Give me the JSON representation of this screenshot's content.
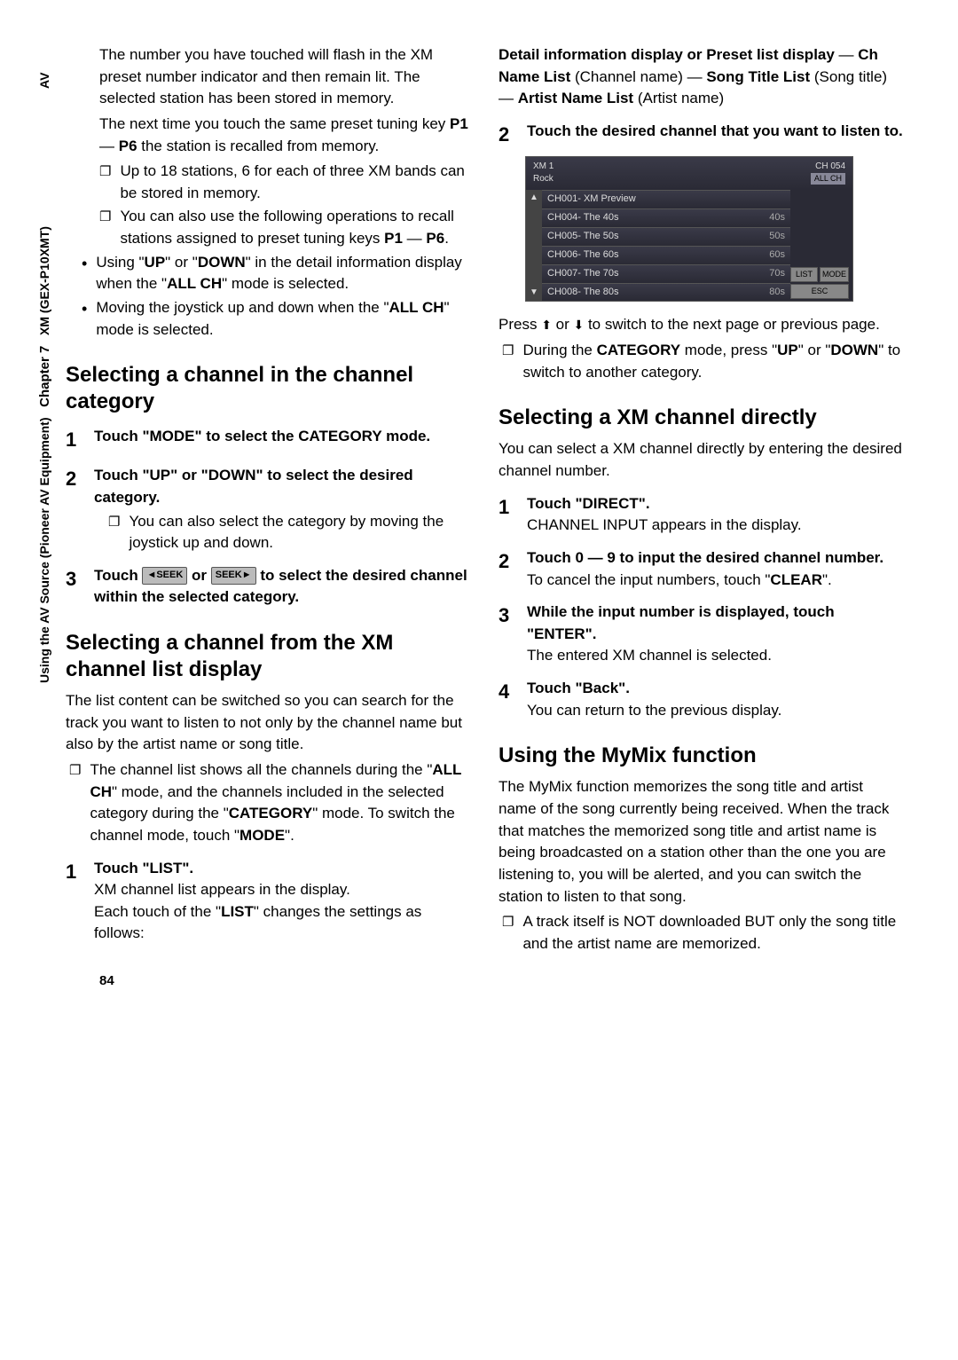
{
  "sidebar": {
    "av": "AV",
    "chapter_label": "Chapter 7",
    "product": "XM (GEX-P10XMT)",
    "using": "Using the AV Source (Pioneer AV Equipment)"
  },
  "left": {
    "p1": "The number you have touched will flash in the XM preset number indicator and then remain lit. The selected station has been stored in memory.",
    "p2a": "The next time you touch the same preset tuning key ",
    "p2b": "P1",
    "p2c": " — ",
    "p2d": "P6",
    "p2e": " the station is recalled from memory.",
    "b1": "Up to 18 stations, 6 for each of three XM bands can be stored in memory.",
    "b2a": "You can also use the following operations to recall stations assigned to preset tuning keys ",
    "b2b": "P1",
    "b2c": " — ",
    "b2d": "P6",
    "b2e": ".",
    "d1a": "Using \"",
    "d1b": "UP",
    "d1c": "\" or \"",
    "d1d": "DOWN",
    "d1e": "\" in the detail information display when the \"",
    "d1f": "ALL CH",
    "d1g": "\" mode is selected.",
    "d2a": "Moving the joystick up and down when the \"",
    "d2b": "ALL CH",
    "d2c": "\" mode is selected.",
    "h1": "Selecting a channel in the channel category",
    "s1": "Touch \"MODE\" to select the CATEGORY mode.",
    "s2": "Touch \"UP\" or \"DOWN\" to select the desired category.",
    "s2b": "You can also select the category by moving the joystick up and down.",
    "s3a": "Touch ",
    "s3b": " or ",
    "s3c": " to select the desired channel within the selected category.",
    "seek_l": "◄SEEK",
    "seek_r": "SEEK►",
    "h2": "Selecting a channel from the XM channel list display",
    "p3": "The list content can be switched so you can search for the track you want to listen to not only by the channel name but also by the artist name or song title.",
    "b3a": "The channel list shows all the channels during the \"",
    "b3b": "ALL CH",
    "b3c": "\" mode, and the channels included in the selected category during the \"",
    "b3d": "CATEGORY",
    "b3e": "\" mode. To switch the channel mode, touch \"",
    "b3f": "MODE",
    "b3g": "\".",
    "s4": "Touch \"LIST\".",
    "s4a": "XM channel list appears in the display.",
    "s4b_a": "Each touch of the \"",
    "s4b_b": "LIST",
    "s4b_c": "\" changes the settings as follows:"
  },
  "right": {
    "top_a": "Detail information display or Preset list display",
    "top_b": " — ",
    "top_c": "Ch Name List",
    "top_d": " (Channel name) — ",
    "top_e": "Song Title List",
    "top_f": " (Song title) — ",
    "top_g": "Artist Name List",
    "top_h": " (Artist name)",
    "s2": "Touch the desired channel that you want to listen to.",
    "screenshot": {
      "xm": "XM 1",
      "genre": "Rock",
      "ch": "CH 054",
      "allch": "ALL CH",
      "rows": [
        {
          "l": "CH001- XM Preview",
          "r": ""
        },
        {
          "l": "CH004- The 40s",
          "r": "40s"
        },
        {
          "l": "CH005- The 50s",
          "r": "50s"
        },
        {
          "l": "CH006- The 60s",
          "r": "60s"
        },
        {
          "l": "CH007- The 70s",
          "r": "70s"
        },
        {
          "l": "CH008- The 80s",
          "r": "80s"
        }
      ],
      "btn_list": "LIST",
      "btn_mode": "MODE",
      "btn_esc": "ESC"
    },
    "p_press_a": "Press ",
    "p_press_b": " or ",
    "p_press_c": " to switch to the next page or previous page.",
    "arrow_up": "⇞",
    "arrow_dn": "⇟",
    "b_cat_a": "During the ",
    "b_cat_b": "CATEGORY",
    "b_cat_c": " mode, press \"",
    "b_cat_d": "UP",
    "b_cat_e": "\" or \"",
    "b_cat_f": "DOWN",
    "b_cat_g": "\" to switch to another category.",
    "h3": "Selecting a XM channel directly",
    "p4": "You can select a XM channel directly by entering the desired channel number.",
    "s1": "Touch \"DIRECT\".",
    "s1t": "CHANNEL INPUT appears in the display.",
    "s2d": "Touch 0 — 9 to input the desired channel number.",
    "s2t_a": "To cancel the input numbers, touch \"",
    "s2t_b": "CLEAR",
    "s2t_c": "\".",
    "s3": "While the input number is displayed, touch \"ENTER\".",
    "s3t": "The entered XM channel is selected.",
    "s4": "Touch \"Back\".",
    "s4t": "You can return to the previous display.",
    "h4": "Using the MyMix function",
    "p5": "The MyMix function memorizes the song title and artist name of the song currently being received. When the track that matches the memorized song title and artist name is being broadcasted on a station other than the one you are listening to, you will be alerted, and you can switch the station to listen to that song.",
    "b4": "A track itself is NOT downloaded BUT only the song title and the artist name are memorized."
  },
  "page_num": "84"
}
